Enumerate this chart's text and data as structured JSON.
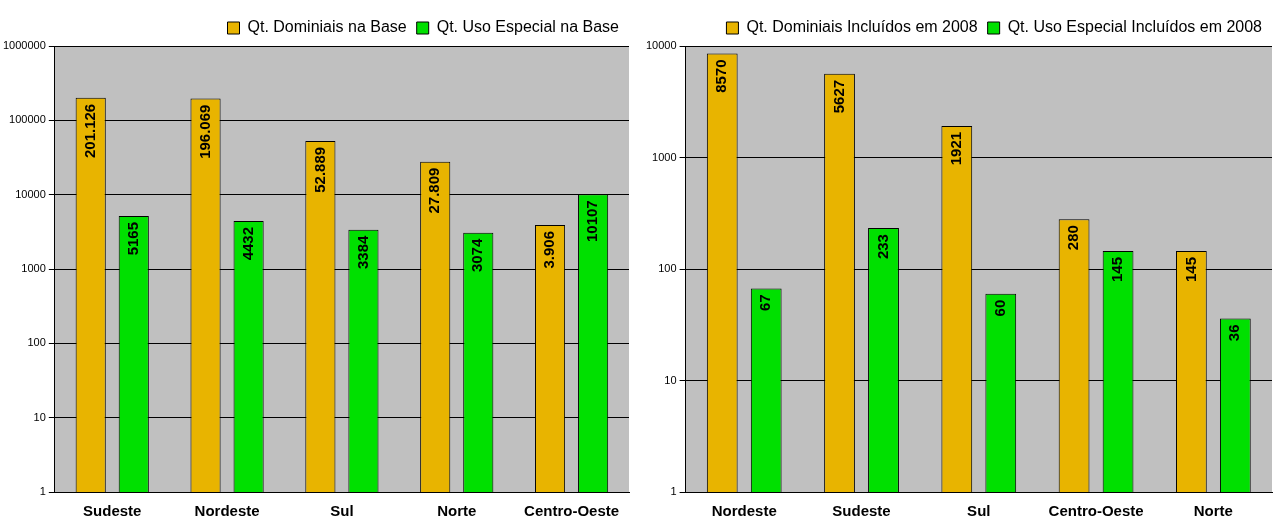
{
  "chart_data": [
    {
      "type": "bar",
      "categories": [
        "Sudeste",
        "Nordeste",
        "Sul",
        "Norte",
        "Centro-Oeste"
      ],
      "log": "y",
      "ylim": [
        1,
        1000000
      ],
      "yticks": [
        1,
        10,
        100,
        1000,
        10000,
        100000,
        1000000
      ],
      "grid": "y",
      "legend": "top right",
      "series": [
        {
          "name": "Qt. Dominiais na Base",
          "color": "#e8b400",
          "values": [
            201126,
            196069,
            52889,
            27809,
            3906
          ],
          "value_labels": [
            "201.126",
            "196.069",
            "52.889",
            "27.809",
            "3.906"
          ]
        },
        {
          "name": "Qt. Uso Especial na Base",
          "color": "#00e000",
          "values": [
            5165,
            4432,
            3384,
            3074,
            10107
          ],
          "value_labels": [
            "5165",
            "4432",
            "3384",
            "3074",
            "10107"
          ]
        }
      ]
    },
    {
      "type": "bar",
      "categories": [
        "Nordeste",
        "Sudeste",
        "Sul",
        "Centro-Oeste",
        "Norte"
      ],
      "log": "y",
      "ylim": [
        1,
        10000
      ],
      "yticks": [
        1,
        10,
        100,
        1000,
        10000
      ],
      "grid": "y",
      "legend": "top right",
      "data_labels": true,
      "series": [
        {
          "name": "Qt. Dominiais Incluídos em 2008",
          "color": "#e8b400",
          "values": [
            8570,
            5627,
            1921,
            280,
            145
          ]
        },
        {
          "name": "Qt. Uso Especial Incluídos em 2008",
          "color": "#00e000",
          "values": [
            67,
            233,
            60,
            145,
            36
          ]
        }
      ]
    }
  ]
}
